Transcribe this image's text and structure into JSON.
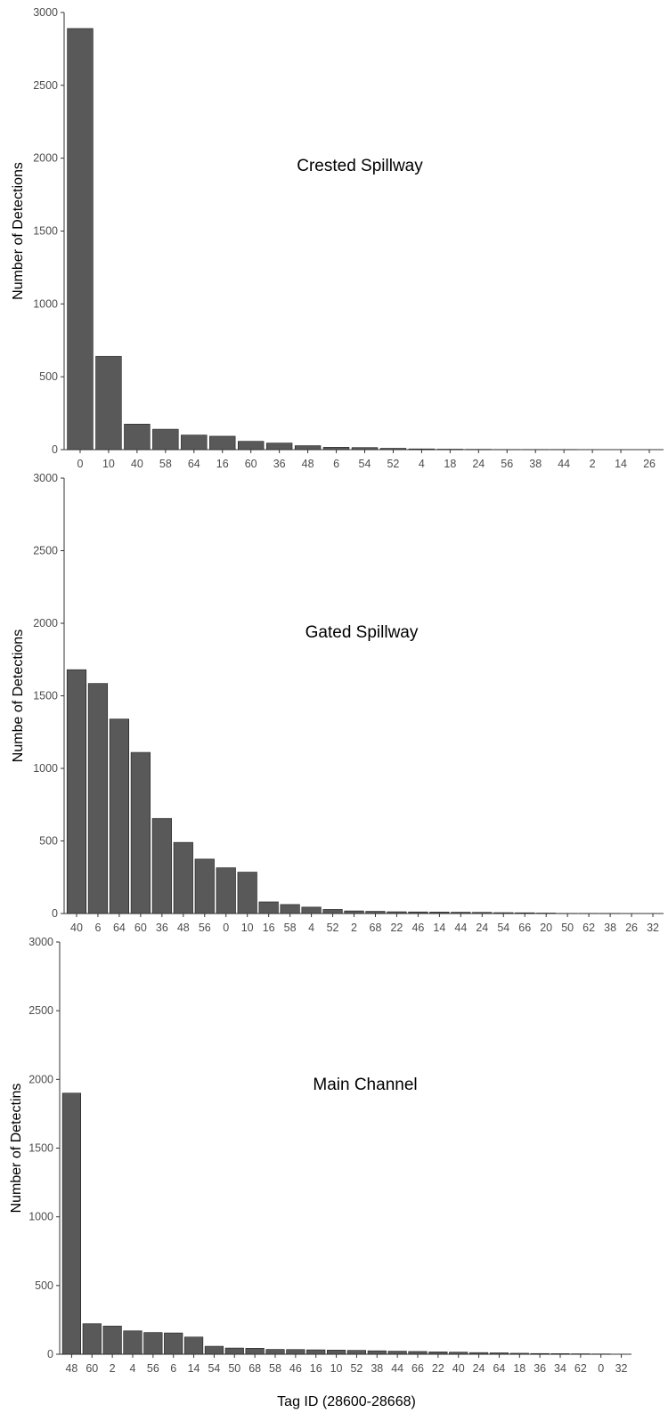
{
  "chart_data": [
    {
      "type": "bar",
      "title": "Crested Spillway",
      "xlabel": "",
      "ylabel": "Number of Detections",
      "ylim": [
        0,
        3000
      ],
      "yticks": [
        0,
        500,
        1000,
        1500,
        2000,
        2500,
        3000
      ],
      "grid": false,
      "bar_color": "#595959",
      "categories": [
        "0",
        "10",
        "40",
        "58",
        "64",
        "16",
        "60",
        "36",
        "48",
        "6",
        "54",
        "52",
        "4",
        "18",
        "24",
        "56",
        "38",
        "44",
        "2",
        "14",
        "26"
      ],
      "values": [
        2890,
        640,
        175,
        140,
        100,
        92,
        57,
        45,
        27,
        16,
        14,
        9,
        5,
        3,
        2,
        1,
        1,
        1,
        0,
        0,
        0
      ]
    },
    {
      "type": "bar",
      "title": "Gated Spillway",
      "xlabel": "",
      "ylabel": "Numbe of Detections",
      "ylim": [
        0,
        3000
      ],
      "yticks": [
        0,
        500,
        1000,
        1500,
        2000,
        2500,
        3000
      ],
      "grid": false,
      "bar_color": "#595959",
      "categories": [
        "40",
        "6",
        "64",
        "60",
        "36",
        "48",
        "56",
        "0",
        "10",
        "16",
        "58",
        "4",
        "52",
        "2",
        "68",
        "22",
        "46",
        "14",
        "44",
        "24",
        "54",
        "66",
        "20",
        "50",
        "62",
        "38",
        "26",
        "32"
      ],
      "values": [
        1680,
        1585,
        1340,
        1110,
        655,
        490,
        375,
        315,
        285,
        80,
        62,
        44,
        28,
        18,
        15,
        12,
        11,
        10,
        9,
        8,
        6,
        5,
        3,
        1,
        1,
        1,
        0,
        0
      ]
    },
    {
      "type": "bar",
      "title": "Main Channel",
      "xlabel": "Tag ID (28600-28668)",
      "ylabel": "Number of Detectins",
      "ylim": [
        0,
        3000
      ],
      "yticks": [
        0,
        500,
        1000,
        1500,
        2000,
        2500,
        3000
      ],
      "grid": false,
      "bar_color": "#595959",
      "categories": [
        "48",
        "60",
        "2",
        "4",
        "56",
        "6",
        "14",
        "54",
        "50",
        "68",
        "58",
        "46",
        "16",
        "10",
        "52",
        "38",
        "44",
        "66",
        "22",
        "40",
        "24",
        "64",
        "18",
        "36",
        "34",
        "62",
        "0",
        "32"
      ],
      "values": [
        1900,
        222,
        205,
        170,
        158,
        155,
        125,
        58,
        45,
        43,
        35,
        34,
        32,
        30,
        28,
        25,
        22,
        20,
        17,
        15,
        12,
        10,
        7,
        5,
        4,
        3,
        2,
        0
      ]
    }
  ]
}
